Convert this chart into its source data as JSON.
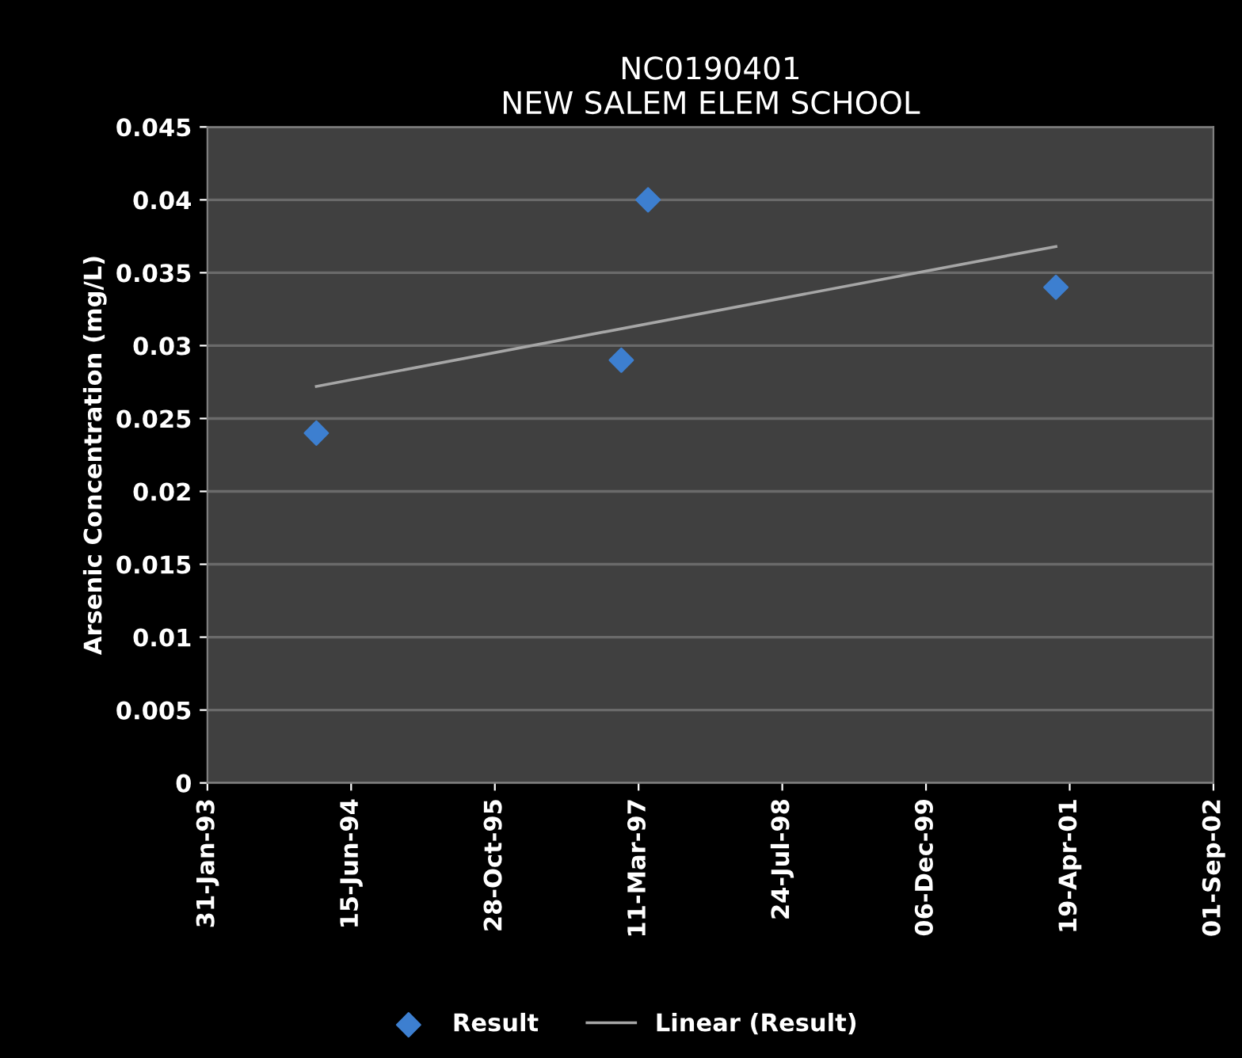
{
  "chart_data": {
    "type": "scatter",
    "title": "NC0190401\nNEW SALEM ELEM SCHOOL",
    "ylabel": "Arsenic Concentration (mg/L)",
    "series": [
      {
        "name": "Result",
        "color": "#3d7fd0",
        "marker": "diamond",
        "x": [
          "1994-02-14",
          "1997-01-10",
          "1997-04-13",
          "2001-03-02"
        ],
        "values": [
          0.024,
          0.029,
          0.04,
          0.034
        ]
      },
      {
        "name": "Linear (Result)",
        "type": "line",
        "color": "#a6a6a6",
        "marker": "none",
        "line_style": "solid",
        "x": [
          "1994-02-14",
          "2001-03-02"
        ],
        "values": [
          0.0272,
          0.0368
        ]
      }
    ],
    "xlim": [
      "1993-01-31",
      "2002-09-01"
    ],
    "xticks": [
      {
        "value": "1993-01-31",
        "label": "31-Jan-93"
      },
      {
        "value": "1994-06-15",
        "label": "15-Jun-94"
      },
      {
        "value": "1995-10-28",
        "label": "28-Oct-95"
      },
      {
        "value": "1997-03-11",
        "label": "11-Mar-97"
      },
      {
        "value": "1998-07-24",
        "label": "24-Jul-98"
      },
      {
        "value": "1999-12-06",
        "label": "06-Dec-99"
      },
      {
        "value": "2001-04-19",
        "label": "19-Apr-01"
      },
      {
        "value": "2002-09-01",
        "label": "01-Sep-02"
      }
    ],
    "ylim": [
      0,
      0.045
    ],
    "yticks": [
      0,
      0.005,
      0.01,
      0.015,
      0.02,
      0.025,
      0.03,
      0.035,
      0.04,
      0.045
    ],
    "grid": "y",
    "legend": "bottom"
  }
}
